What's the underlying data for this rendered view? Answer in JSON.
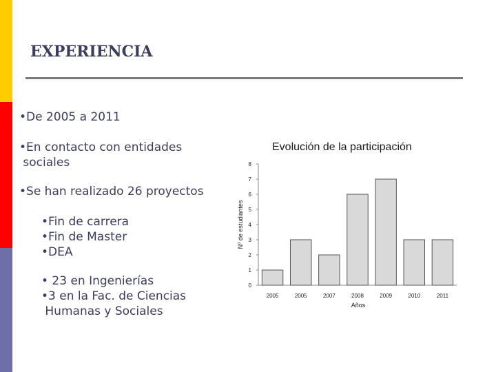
{
  "slide": {
    "title": "EXPERIENCIA",
    "bullets": {
      "b1": "•De 2005 a 2011",
      "b2_l1": "•En contacto con entidades",
      "b2_l2": " sociales",
      "b3": "•Se han realizado 26 proyectos",
      "sub1": "•Fin de carrera",
      "sub2": "•Fin de Master",
      "sub3": "•DEA",
      "sub4": "• 23 en Ingenierías",
      "sub5_l1": "•3 en la Fac. de Ciencias",
      "sub5_l2": " Humanas y Sociales"
    }
  },
  "chart_data": {
    "type": "bar",
    "title": "Evolución de la participación",
    "ylabel": "Nº de estudiantes",
    "xlabel": "Años",
    "categories": [
      "2005",
      "2005",
      "2007",
      "2008",
      "2009",
      "2010",
      "2011"
    ],
    "values": [
      1,
      3,
      2,
      6,
      7,
      3,
      3
    ],
    "ylim": [
      0,
      8
    ],
    "yticks": [
      "0",
      "1",
      "2",
      "3",
      "4",
      "5",
      "6",
      "7",
      "8"
    ],
    "bar_color": "#d9d9d9",
    "bar_edge_color": "#555555"
  }
}
